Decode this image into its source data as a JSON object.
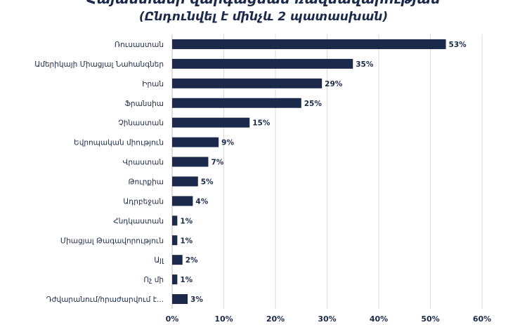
{
  "chart_data": {
    "type": "bar",
    "orientation": "horizontal",
    "title": "Հայաստանի զարգացման ռազմավարության",
    "subtitle": "(Ընդունվել է մինչև 2 պատասխան)",
    "categories": [
      "Ռուսաստան",
      "Ամերիկայի Միացյալ Նահանգներ",
      "Իրան",
      "Ֆրանսիա",
      "Չինաստան",
      "Եվրոպական միություն",
      "Վրաստան",
      "Թուրքիա",
      "Ադրբեջան",
      "Հնդկաստան",
      "Միացյալ Թագավորություն",
      "Այլ",
      "Ոչ մի",
      "Դժվարանում/հրաժարվում է..."
    ],
    "values": [
      53,
      35,
      29,
      25,
      15,
      9,
      7,
      5,
      4,
      1,
      1,
      2,
      1,
      3
    ],
    "value_labels": [
      "53%",
      "35%",
      "29%",
      "25%",
      "15%",
      "9%",
      "7%",
      "5%",
      "4%",
      "1%",
      "1%",
      "2%",
      "1%",
      "3%"
    ],
    "xlim": [
      0,
      60
    ],
    "xticks": [
      "0%",
      "10%",
      "20%",
      "30%",
      "40%",
      "50%",
      "60%"
    ],
    "grid": true,
    "bar_color": "#1b2a4a",
    "grid_color": "#d9d9d9",
    "text_color": "#1b2a4a"
  }
}
